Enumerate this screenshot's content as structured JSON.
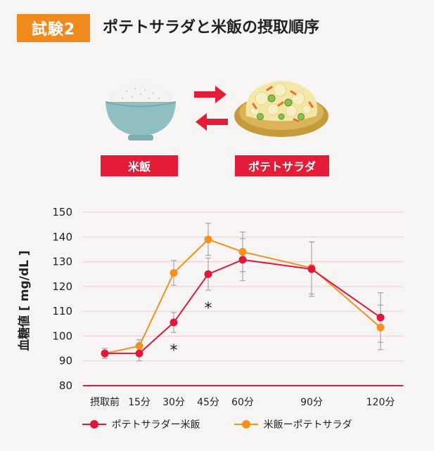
{
  "header": {
    "badge": "試験2",
    "title": "ポテトサラダと米飯の摂取順序"
  },
  "foods": {
    "rice_label": "米飯",
    "salad_label": "ポテトサラダ"
  },
  "colors": {
    "badge": "#f08a1c",
    "label_bg": "#e41c38",
    "series_red": "#e0173a",
    "series_orange": "#f5901c",
    "grid": "#f3c9cf",
    "baseline": "#e41c38"
  },
  "chart_data": {
    "type": "line",
    "title": "",
    "ylabel": "血糖値 [ mg/dL ]",
    "xlabel": "",
    "ylim": [
      80,
      150
    ],
    "yticks": [
      80,
      90,
      100,
      110,
      120,
      130,
      140,
      150
    ],
    "x_minutes": [
      0,
      15,
      30,
      45,
      60,
      90,
      120
    ],
    "categories": [
      "摂取前",
      "15分",
      "30分",
      "45分",
      "60分",
      "90分",
      "120分"
    ],
    "series": [
      {
        "name": "ポテトサラダー米飯",
        "color": "#e0173a",
        "values": [
          93,
          93,
          105.5,
          125,
          130.8,
          127,
          107.5
        ],
        "errors": [
          2,
          3,
          4,
          6.5,
          8.5,
          11,
          10
        ]
      },
      {
        "name": "米飯ーポテトサラダ",
        "color": "#f5901c",
        "values": [
          93,
          96,
          125.5,
          139,
          134,
          127.5,
          103.5
        ],
        "errors": [
          2,
          2.5,
          5,
          6.5,
          8,
          10.5,
          9
        ]
      }
    ],
    "annotations": [
      "*",
      "*"
    ],
    "grid": true,
    "legend_position": "bottom"
  }
}
